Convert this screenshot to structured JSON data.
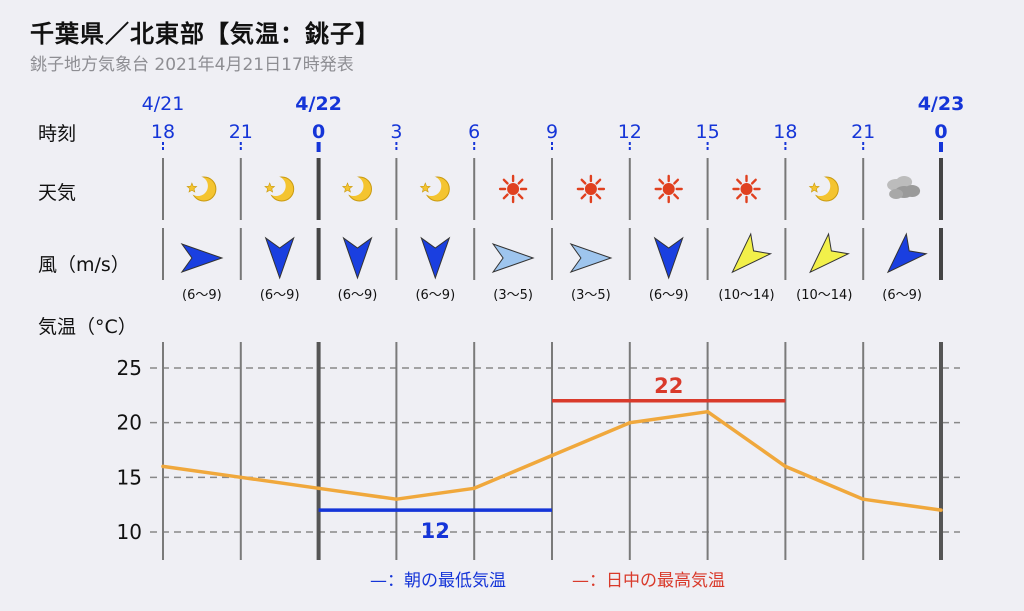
{
  "header": {
    "title": "千葉県／北東部【気温：銚子】",
    "subtitle": "銚子地方気象台 2021年4月21日17時発表"
  },
  "row_labels": {
    "time": "時刻",
    "weather": "天気",
    "wind": "風（m/s）",
    "temp": "気温（°C）"
  },
  "dates": [
    {
      "label": "4/21",
      "col": 0,
      "bold": false
    },
    {
      "label": "4/22",
      "col": 2,
      "bold": true
    },
    {
      "label": "4/23",
      "col": 10,
      "bold": true
    }
  ],
  "columns": [
    {
      "hour": "18",
      "bold": false,
      "weather": "night-clear-icon",
      "wind_dir": "E",
      "wind_speed": "(6〜9)",
      "wind_color": "#1a3fe0",
      "temp": 16
    },
    {
      "hour": "21",
      "bold": false,
      "weather": "night-clear-icon",
      "wind_dir": "N",
      "wind_speed": "(6〜9)",
      "wind_color": "#1a3fe0",
      "temp": 15
    },
    {
      "hour": "0",
      "bold": true,
      "weather": "night-clear-icon",
      "wind_dir": "N",
      "wind_speed": "(6〜9)",
      "wind_color": "#1a3fe0",
      "temp": 14
    },
    {
      "hour": "3",
      "bold": false,
      "weather": "night-clear-icon",
      "wind_dir": "N",
      "wind_speed": "(6〜9)",
      "wind_color": "#1a3fe0",
      "temp": 13
    },
    {
      "hour": "6",
      "bold": false,
      "weather": "sunny-icon",
      "wind_dir": "E",
      "wind_speed": "(3〜5)",
      "wind_color": "#9ec5ee",
      "temp": 14
    },
    {
      "hour": "9",
      "bold": false,
      "weather": "sunny-icon",
      "wind_dir": "E",
      "wind_speed": "(3〜5)",
      "wind_color": "#9ec5ee",
      "temp": 17
    },
    {
      "hour": "12",
      "bold": false,
      "weather": "sunny-icon",
      "wind_dir": "N",
      "wind_speed": "(6〜9)",
      "wind_color": "#1a3fe0",
      "temp": 20
    },
    {
      "hour": "15",
      "bold": false,
      "weather": "sunny-icon",
      "wind_dir": "NE",
      "wind_speed": "(10〜14)",
      "wind_color": "#f2f04a",
      "temp": 21
    },
    {
      "hour": "18",
      "bold": false,
      "weather": "night-clear-icon",
      "wind_dir": "NE",
      "wind_speed": "(10〜14)",
      "wind_color": "#f2f04a",
      "temp": 16
    },
    {
      "hour": "21",
      "bold": false,
      "weather": "cloudy-icon",
      "wind_dir": "NE",
      "wind_speed": "(6〜9)",
      "wind_color": "#1a3fe0",
      "temp": 13
    },
    {
      "hour": "0",
      "bold": true,
      "weather": null,
      "wind_dir": null,
      "wind_speed": null,
      "wind_color": null,
      "temp": 12
    }
  ],
  "chart_data": {
    "type": "line",
    "x": [
      "18",
      "21",
      "0",
      "3",
      "6",
      "9",
      "12",
      "15",
      "18",
      "21",
      "0"
    ],
    "series": [
      {
        "values": [
          16,
          15,
          14,
          13,
          14,
          17,
          20,
          21,
          16,
          13,
          12
        ],
        "color": "#f0a83c"
      }
    ],
    "ylabel": "気温（°C）",
    "ylim": [
      8,
      27
    ],
    "yticks": [
      10,
      15,
      20,
      25
    ],
    "grid": "dashed horizontal",
    "annotations": [
      {
        "label": "12",
        "value": 12,
        "x_range": [
          "0",
          "9"
        ],
        "color": "#1535d8"
      },
      {
        "label": "22",
        "value": 22,
        "x_range": [
          "9",
          "18"
        ],
        "color": "#d93a2b"
      }
    ]
  },
  "legend": {
    "min_label": "—：朝の最低気温",
    "min_color": "#1535d8",
    "max_label": "—：日中の最高気温",
    "max_color": "#d93a2b"
  },
  "colors": {
    "blue": "#1535d8",
    "line": "#f0a83c",
    "red": "#d93a2b"
  }
}
